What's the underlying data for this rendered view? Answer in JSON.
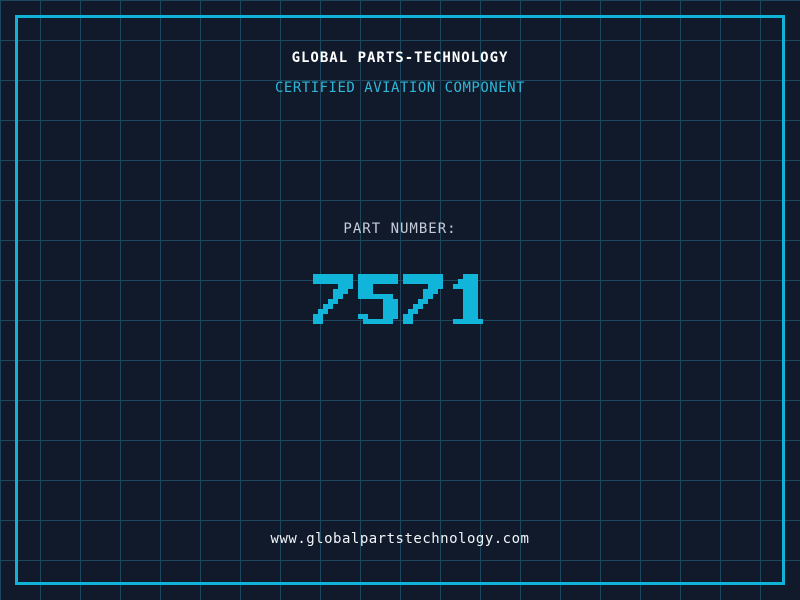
{
  "colors": {
    "background": "#111a2b",
    "grid_line": "#1d475f",
    "frame_border": "#0fb2d8",
    "part_number_cyan": "#12b5da",
    "certification_cyan": "#2fb7d8",
    "label_gray": "#c7cdd8",
    "title_white": "#ffffff",
    "url_white": "#f2f5f8"
  },
  "header": {
    "company_name": "GLOBAL PARTS-TECHNOLOGY",
    "certification": "CERTIFIED AVIATION COMPONENT"
  },
  "part": {
    "label": "PART NUMBER:",
    "number": "7571"
  },
  "footer": {
    "website": "www.globalpartstechnology.com"
  }
}
